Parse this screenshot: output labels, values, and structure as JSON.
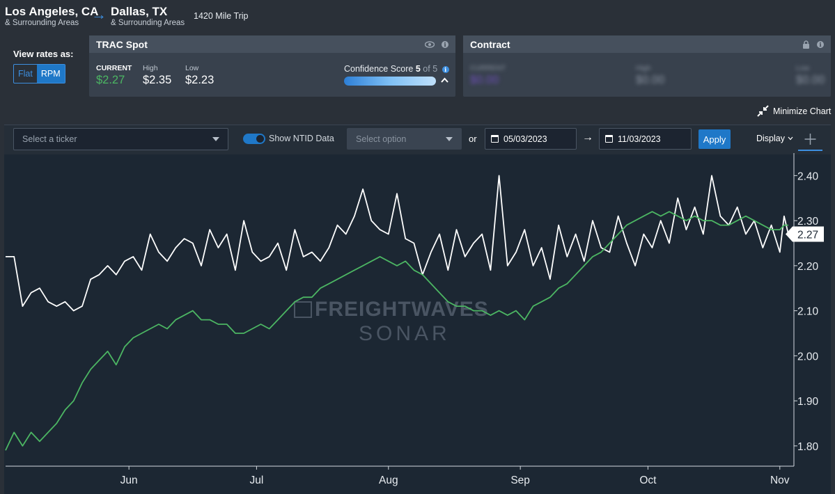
{
  "route": {
    "origin": "Los Angeles, CA",
    "origin_sub": "& Surrounding Areas",
    "destination": "Dallas, TX",
    "destination_sub": "& Surrounding Areas",
    "trip": "1420 Mile Trip"
  },
  "view_rates": {
    "label": "View rates as:",
    "options": [
      "Flat",
      "RPM"
    ],
    "selected": "RPM"
  },
  "trac_spot": {
    "title": "TRAC Spot",
    "current_label": "CURRENT",
    "current_value": "$2.27",
    "high_label": "High",
    "high_value": "$2.35",
    "low_label": "Low",
    "low_value": "$2.23",
    "confidence_label": "Confidence Score",
    "confidence_score": "5",
    "confidence_of": "of 5",
    "info_glyph": "i"
  },
  "contract": {
    "title": "Contract",
    "current_label": "CURRENT",
    "current_value": "$0.00",
    "high_label": "High",
    "high_value": "$0.00",
    "low_label": "Low",
    "low_value": "$0.00",
    "info_glyph": "i"
  },
  "minimize_label": "Minimize Chart",
  "toolbar": {
    "ticker_placeholder": "Select a ticker",
    "ntid_label": "Show NTID Data",
    "option_placeholder": "Select option",
    "or_label": "or",
    "start_date": "05/03/2023",
    "end_date": "11/03/2023",
    "apply_label": "Apply",
    "display_label": "Display"
  },
  "colors": {
    "spot_line": "#ffffff",
    "ntid_line": "#4cb663",
    "accent": "#1f78c8",
    "background": "#1c2733"
  },
  "watermark": {
    "line1": "FREIGHTWAVES",
    "line2": "SONAR"
  },
  "chart_data": {
    "type": "line",
    "x_start": "2023-05-03",
    "x_end": "2023-11-03",
    "xlabel": "",
    "ylabel": "",
    "x_ticks": [
      "Jun",
      "Jul",
      "Aug",
      "Sep",
      "Oct",
      "Nov"
    ],
    "y_ticks": [
      "1.80",
      "1.90",
      "2.00",
      "2.10",
      "2.20",
      "2.30",
      "2.40"
    ],
    "ylim": [
      1.755,
      2.45
    ],
    "grid": false,
    "current_marker": "2.27",
    "series": [
      {
        "color": "#ffffff",
        "points": [
          [
            "2023-05-03",
            2.22
          ],
          [
            "2023-05-05",
            2.22
          ],
          [
            "2023-05-07",
            2.11
          ],
          [
            "2023-05-09",
            2.14
          ],
          [
            "2023-05-11",
            2.15
          ],
          [
            "2023-05-13",
            2.12
          ],
          [
            "2023-05-15",
            2.11
          ],
          [
            "2023-05-17",
            2.12
          ],
          [
            "2023-05-19",
            2.1
          ],
          [
            "2023-05-21",
            2.11
          ],
          [
            "2023-05-23",
            2.17
          ],
          [
            "2023-05-25",
            2.18
          ],
          [
            "2023-05-27",
            2.2
          ],
          [
            "2023-05-29",
            2.18
          ],
          [
            "2023-05-31",
            2.21
          ],
          [
            "2023-06-02",
            2.22
          ],
          [
            "2023-06-04",
            2.19
          ],
          [
            "2023-06-06",
            2.27
          ],
          [
            "2023-06-08",
            2.23
          ],
          [
            "2023-06-10",
            2.21
          ],
          [
            "2023-06-12",
            2.24
          ],
          [
            "2023-06-14",
            2.26
          ],
          [
            "2023-06-16",
            2.25
          ],
          [
            "2023-06-18",
            2.2
          ],
          [
            "2023-06-20",
            2.28
          ],
          [
            "2023-06-22",
            2.24
          ],
          [
            "2023-06-24",
            2.27
          ],
          [
            "2023-06-26",
            2.19
          ],
          [
            "2023-06-28",
            2.3
          ],
          [
            "2023-06-30",
            2.23
          ],
          [
            "2023-07-02",
            2.21
          ],
          [
            "2023-07-04",
            2.22
          ],
          [
            "2023-07-06",
            2.25
          ],
          [
            "2023-07-08",
            2.19
          ],
          [
            "2023-07-10",
            2.28
          ],
          [
            "2023-07-12",
            2.22
          ],
          [
            "2023-07-14",
            2.23
          ],
          [
            "2023-07-16",
            2.21
          ],
          [
            "2023-07-18",
            2.24
          ],
          [
            "2023-07-20",
            2.29
          ],
          [
            "2023-07-22",
            2.27
          ],
          [
            "2023-07-24",
            2.31
          ],
          [
            "2023-07-26",
            2.37
          ],
          [
            "2023-07-28",
            2.3
          ],
          [
            "2023-07-30",
            2.28
          ],
          [
            "2023-08-01",
            2.27
          ],
          [
            "2023-08-03",
            2.36
          ],
          [
            "2023-08-05",
            2.26
          ],
          [
            "2023-08-07",
            2.25
          ],
          [
            "2023-08-09",
            2.18
          ],
          [
            "2023-08-11",
            2.23
          ],
          [
            "2023-08-13",
            2.27
          ],
          [
            "2023-08-15",
            2.19
          ],
          [
            "2023-08-17",
            2.28
          ],
          [
            "2023-08-19",
            2.22
          ],
          [
            "2023-08-21",
            2.25
          ],
          [
            "2023-08-23",
            2.27
          ],
          [
            "2023-08-25",
            2.19
          ],
          [
            "2023-08-27",
            2.4
          ],
          [
            "2023-08-29",
            2.2
          ],
          [
            "2023-08-31",
            2.23
          ],
          [
            "2023-09-02",
            2.28
          ],
          [
            "2023-09-04",
            2.2
          ],
          [
            "2023-09-06",
            2.24
          ],
          [
            "2023-09-08",
            2.17
          ],
          [
            "2023-09-10",
            2.29
          ],
          [
            "2023-09-12",
            2.22
          ],
          [
            "2023-09-14",
            2.27
          ],
          [
            "2023-09-16",
            2.21
          ],
          [
            "2023-09-18",
            2.3
          ],
          [
            "2023-09-20",
            2.24
          ],
          [
            "2023-09-22",
            2.23
          ],
          [
            "2023-09-24",
            2.31
          ],
          [
            "2023-09-26",
            2.25
          ],
          [
            "2023-09-28",
            2.2
          ],
          [
            "2023-09-30",
            2.27
          ],
          [
            "2023-10-02",
            2.24
          ],
          [
            "2023-10-04",
            2.3
          ],
          [
            "2023-10-06",
            2.25
          ],
          [
            "2023-10-08",
            2.35
          ],
          [
            "2023-10-10",
            2.28
          ],
          [
            "2023-10-12",
            2.33
          ],
          [
            "2023-10-14",
            2.27
          ],
          [
            "2023-10-16",
            2.4
          ],
          [
            "2023-10-18",
            2.31
          ],
          [
            "2023-10-20",
            2.29
          ],
          [
            "2023-10-22",
            2.33
          ],
          [
            "2023-10-24",
            2.27
          ],
          [
            "2023-10-26",
            2.3
          ],
          [
            "2023-10-28",
            2.24
          ],
          [
            "2023-10-30",
            2.29
          ],
          [
            "2023-11-01",
            2.23
          ],
          [
            "2023-11-02",
            2.31
          ],
          [
            "2023-11-03",
            2.27
          ]
        ]
      },
      {
        "color": "#4cb663",
        "points": [
          [
            "2023-05-03",
            1.79
          ],
          [
            "2023-05-05",
            1.83
          ],
          [
            "2023-05-07",
            1.8
          ],
          [
            "2023-05-09",
            1.83
          ],
          [
            "2023-05-11",
            1.81
          ],
          [
            "2023-05-13",
            1.83
          ],
          [
            "2023-05-15",
            1.85
          ],
          [
            "2023-05-17",
            1.88
          ],
          [
            "2023-05-19",
            1.9
          ],
          [
            "2023-05-21",
            1.94
          ],
          [
            "2023-05-23",
            1.97
          ],
          [
            "2023-05-25",
            1.99
          ],
          [
            "2023-05-27",
            2.01
          ],
          [
            "2023-05-29",
            1.98
          ],
          [
            "2023-05-31",
            2.02
          ],
          [
            "2023-06-02",
            2.04
          ],
          [
            "2023-06-04",
            2.05
          ],
          [
            "2023-06-06",
            2.06
          ],
          [
            "2023-06-08",
            2.07
          ],
          [
            "2023-06-10",
            2.06
          ],
          [
            "2023-06-12",
            2.08
          ],
          [
            "2023-06-14",
            2.09
          ],
          [
            "2023-06-16",
            2.1
          ],
          [
            "2023-06-18",
            2.08
          ],
          [
            "2023-06-20",
            2.08
          ],
          [
            "2023-06-22",
            2.07
          ],
          [
            "2023-06-24",
            2.07
          ],
          [
            "2023-06-26",
            2.05
          ],
          [
            "2023-06-28",
            2.05
          ],
          [
            "2023-06-30",
            2.06
          ],
          [
            "2023-07-02",
            2.07
          ],
          [
            "2023-07-04",
            2.06
          ],
          [
            "2023-07-06",
            2.08
          ],
          [
            "2023-07-08",
            2.1
          ],
          [
            "2023-07-10",
            2.12
          ],
          [
            "2023-07-12",
            2.13
          ],
          [
            "2023-07-14",
            2.13
          ],
          [
            "2023-07-16",
            2.15
          ],
          [
            "2023-07-18",
            2.16
          ],
          [
            "2023-07-20",
            2.17
          ],
          [
            "2023-07-22",
            2.18
          ],
          [
            "2023-07-24",
            2.19
          ],
          [
            "2023-07-26",
            2.2
          ],
          [
            "2023-07-28",
            2.21
          ],
          [
            "2023-07-30",
            2.22
          ],
          [
            "2023-08-01",
            2.21
          ],
          [
            "2023-08-03",
            2.2
          ],
          [
            "2023-08-05",
            2.21
          ],
          [
            "2023-08-07",
            2.19
          ],
          [
            "2023-08-09",
            2.18
          ],
          [
            "2023-08-11",
            2.16
          ],
          [
            "2023-08-13",
            2.14
          ],
          [
            "2023-08-15",
            2.12
          ],
          [
            "2023-08-17",
            2.11
          ],
          [
            "2023-08-19",
            2.11
          ],
          [
            "2023-08-21",
            2.1
          ],
          [
            "2023-08-23",
            2.1
          ],
          [
            "2023-08-25",
            2.09
          ],
          [
            "2023-08-27",
            2.1
          ],
          [
            "2023-08-29",
            2.09
          ],
          [
            "2023-08-31",
            2.1
          ],
          [
            "2023-09-02",
            2.08
          ],
          [
            "2023-09-04",
            2.11
          ],
          [
            "2023-09-06",
            2.12
          ],
          [
            "2023-09-08",
            2.13
          ],
          [
            "2023-09-10",
            2.15
          ],
          [
            "2023-09-12",
            2.16
          ],
          [
            "2023-09-14",
            2.18
          ],
          [
            "2023-09-16",
            2.2
          ],
          [
            "2023-09-18",
            2.22
          ],
          [
            "2023-09-20",
            2.23
          ],
          [
            "2023-09-22",
            2.25
          ],
          [
            "2023-09-24",
            2.27
          ],
          [
            "2023-09-26",
            2.29
          ],
          [
            "2023-09-28",
            2.3
          ],
          [
            "2023-09-30",
            2.31
          ],
          [
            "2023-10-02",
            2.32
          ],
          [
            "2023-10-04",
            2.31
          ],
          [
            "2023-10-06",
            2.32
          ],
          [
            "2023-10-08",
            2.31
          ],
          [
            "2023-10-10",
            2.3
          ],
          [
            "2023-10-12",
            2.31
          ],
          [
            "2023-10-14",
            2.3
          ],
          [
            "2023-10-16",
            2.3
          ],
          [
            "2023-10-18",
            2.29
          ],
          [
            "2023-10-20",
            2.29
          ],
          [
            "2023-10-22",
            2.3
          ],
          [
            "2023-10-24",
            2.31
          ],
          [
            "2023-10-26",
            2.3
          ],
          [
            "2023-10-28",
            2.29
          ],
          [
            "2023-10-30",
            2.28
          ],
          [
            "2023-11-01",
            2.28
          ],
          [
            "2023-11-02",
            2.29
          ],
          [
            "2023-11-03",
            2.29
          ]
        ]
      }
    ]
  }
}
